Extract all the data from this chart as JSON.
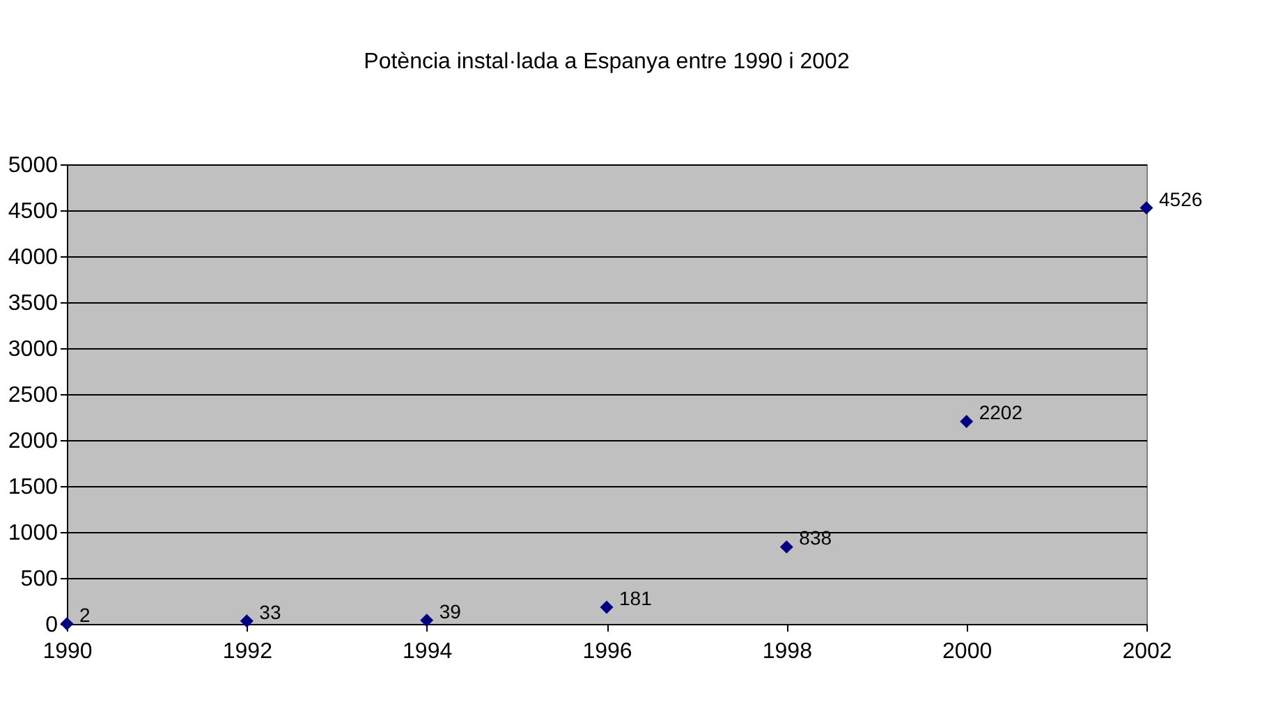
{
  "chart_data": {
    "type": "scatter",
    "title": "Potència instal·lada a Espanya entre 1990 i 2002",
    "x": [
      1990,
      1992,
      1994,
      1996,
      1998,
      2000,
      2002
    ],
    "series": [
      {
        "color": "#000080",
        "values": [
          2,
          33,
          39,
          181,
          838,
          2202,
          4526
        ]
      }
    ],
    "xlim": [
      1990,
      2002
    ],
    "xticks": [
      1990,
      1992,
      1994,
      1996,
      1998,
      2000,
      2002
    ],
    "ylim": [
      0,
      5000
    ],
    "yticks": [
      0,
      500,
      1000,
      1500,
      2000,
      2500,
      3000,
      3500,
      4000,
      4500,
      5000
    ],
    "grid": "y",
    "marker": "diamond",
    "data_labels": true
  }
}
